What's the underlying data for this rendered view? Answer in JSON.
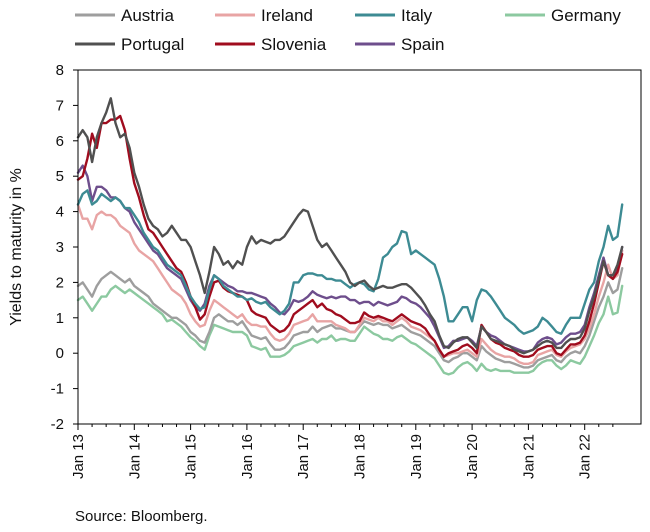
{
  "chart_data": {
    "type": "line",
    "title": "",
    "xlabel": "",
    "ylabel": "Yields to maturity in %",
    "ylim": [
      -2,
      8
    ],
    "yticks": [
      "-2",
      "-1",
      "0",
      "1",
      "2",
      "3",
      "4",
      "5",
      "6",
      "7",
      "8"
    ],
    "xticks": [
      "Jan 13",
      "Jan 14",
      "Jan 15",
      "Jan 16",
      "Jan 17",
      "Jan 18",
      "Jan 19",
      "Jan 20",
      "Jan 21",
      "Jan 22"
    ],
    "x": [
      "2013-01",
      "2013-02",
      "2013-03",
      "2013-04",
      "2013-05",
      "2013-06",
      "2013-07",
      "2013-08",
      "2013-09",
      "2013-10",
      "2013-11",
      "2013-12",
      "2014-01",
      "2014-02",
      "2014-03",
      "2014-04",
      "2014-05",
      "2014-06",
      "2014-07",
      "2014-08",
      "2014-09",
      "2014-10",
      "2014-11",
      "2014-12",
      "2015-01",
      "2015-02",
      "2015-03",
      "2015-04",
      "2015-05",
      "2015-06",
      "2015-07",
      "2015-08",
      "2015-09",
      "2015-10",
      "2015-11",
      "2015-12",
      "2016-01",
      "2016-02",
      "2016-03",
      "2016-04",
      "2016-05",
      "2016-06",
      "2016-07",
      "2016-08",
      "2016-09",
      "2016-10",
      "2016-11",
      "2016-12",
      "2017-01",
      "2017-02",
      "2017-03",
      "2017-04",
      "2017-05",
      "2017-06",
      "2017-07",
      "2017-08",
      "2017-09",
      "2017-10",
      "2017-11",
      "2017-12",
      "2018-01",
      "2018-02",
      "2018-03",
      "2018-04",
      "2018-05",
      "2018-06",
      "2018-07",
      "2018-08",
      "2018-09",
      "2018-10",
      "2018-11",
      "2018-12",
      "2019-01",
      "2019-02",
      "2019-03",
      "2019-04",
      "2019-05",
      "2019-06",
      "2019-07",
      "2019-08",
      "2019-09",
      "2019-10",
      "2019-11",
      "2019-12",
      "2020-01",
      "2020-02",
      "2020-03",
      "2020-04",
      "2020-05",
      "2020-06",
      "2020-07",
      "2020-08",
      "2020-09",
      "2020-10",
      "2020-11",
      "2020-12",
      "2021-01",
      "2021-02",
      "2021-03",
      "2021-04",
      "2021-05",
      "2021-06",
      "2021-07",
      "2021-08",
      "2021-09",
      "2021-10",
      "2021-11",
      "2021-12",
      "2022-01",
      "2022-02",
      "2022-03",
      "2022-04",
      "2022-05",
      "2022-06",
      "2022-07",
      "2022-08",
      "2022-09"
    ],
    "series": [
      {
        "name": "Austria",
        "color": "#9e9e9e",
        "values": [
          1.9,
          2.0,
          1.8,
          1.6,
          1.9,
          2.1,
          2.2,
          2.3,
          2.2,
          2.1,
          2.0,
          2.1,
          1.9,
          1.8,
          1.7,
          1.6,
          1.4,
          1.3,
          1.2,
          1.1,
          1.0,
          1.0,
          0.9,
          0.8,
          0.6,
          0.5,
          0.35,
          0.3,
          0.6,
          1.0,
          1.1,
          1.0,
          0.9,
          0.9,
          0.8,
          0.9,
          0.7,
          0.5,
          0.45,
          0.4,
          0.45,
          0.25,
          0.1,
          0.1,
          0.15,
          0.3,
          0.5,
          0.55,
          0.6,
          0.6,
          0.75,
          0.6,
          0.7,
          0.75,
          0.8,
          0.7,
          0.7,
          0.65,
          0.6,
          0.6,
          0.75,
          0.9,
          0.85,
          0.8,
          0.85,
          0.8,
          0.8,
          0.7,
          0.75,
          0.8,
          0.7,
          0.6,
          0.55,
          0.5,
          0.4,
          0.3,
          0.2,
          0.0,
          -0.2,
          -0.25,
          -0.15,
          -0.1,
          0.0,
          0.0,
          -0.1,
          -0.2,
          0.2,
          0.05,
          -0.05,
          -0.15,
          -0.2,
          -0.25,
          -0.25,
          -0.3,
          -0.35,
          -0.4,
          -0.4,
          -0.35,
          -0.2,
          -0.15,
          -0.1,
          -0.05,
          -0.2,
          -0.25,
          -0.1,
          0.0,
          0.05,
          0.0,
          0.2,
          0.5,
          0.9,
          1.3,
          1.6,
          2.0,
          1.7,
          1.8,
          2.4
        ]
      },
      {
        "name": "Ireland",
        "color": "#e8a4a4",
        "values": [
          4.2,
          3.8,
          3.8,
          3.5,
          3.9,
          4.0,
          3.9,
          3.9,
          3.8,
          3.6,
          3.5,
          3.4,
          3.1,
          2.9,
          2.8,
          2.7,
          2.6,
          2.4,
          2.2,
          2.0,
          1.8,
          1.7,
          1.6,
          1.4,
          1.1,
          0.9,
          0.75,
          0.8,
          1.2,
          1.5,
          1.4,
          1.3,
          1.2,
          1.1,
          1.0,
          1.1,
          0.9,
          0.8,
          0.8,
          0.75,
          0.75,
          0.55,
          0.4,
          0.35,
          0.4,
          0.55,
          0.8,
          0.85,
          0.9,
          0.95,
          1.1,
          0.9,
          0.9,
          0.9,
          0.9,
          0.8,
          0.75,
          0.7,
          0.6,
          0.6,
          0.8,
          1.0,
          0.95,
          0.9,
          1.0,
          0.9,
          0.9,
          0.8,
          0.9,
          1.0,
          0.9,
          0.75,
          0.7,
          0.65,
          0.55,
          0.45,
          0.35,
          0.1,
          -0.1,
          -0.05,
          0.0,
          0.0,
          0.05,
          0.1,
          0.0,
          -0.1,
          0.4,
          0.25,
          0.1,
          0.0,
          -0.05,
          -0.1,
          -0.1,
          -0.15,
          -0.25,
          -0.3,
          -0.3,
          -0.25,
          -0.05,
          0.0,
          0.05,
          0.1,
          -0.05,
          -0.1,
          0.05,
          0.15,
          0.2,
          0.25,
          0.4,
          0.7,
          1.1,
          1.6,
          2.0,
          2.5,
          2.1,
          2.2,
          2.9
        ]
      },
      {
        "name": "Italy",
        "color": "#3d8b93",
        "values": [
          4.2,
          4.5,
          4.6,
          4.2,
          4.3,
          4.5,
          4.4,
          4.3,
          4.4,
          4.3,
          4.1,
          4.1,
          3.9,
          3.7,
          3.4,
          3.2,
          3.0,
          2.9,
          2.7,
          2.5,
          2.4,
          2.3,
          2.2,
          1.9,
          1.6,
          1.4,
          1.25,
          1.3,
          1.8,
          2.2,
          2.1,
          1.9,
          1.8,
          1.7,
          1.6,
          1.6,
          1.5,
          1.55,
          1.45,
          1.4,
          1.45,
          1.3,
          1.2,
          1.1,
          1.2,
          1.4,
          2.0,
          2.0,
          2.2,
          2.25,
          2.25,
          2.2,
          2.2,
          2.1,
          2.1,
          2.05,
          2.05,
          1.95,
          1.85,
          1.95,
          2.0,
          1.95,
          1.8,
          1.75,
          2.1,
          2.7,
          2.8,
          3.0,
          3.1,
          3.45,
          3.4,
          2.8,
          2.9,
          2.8,
          2.7,
          2.6,
          2.5,
          2.1,
          1.6,
          0.9,
          0.9,
          1.1,
          1.3,
          1.3,
          0.9,
          1.5,
          1.8,
          1.75,
          1.6,
          1.4,
          1.2,
          1.0,
          0.9,
          0.8,
          0.65,
          0.55,
          0.6,
          0.65,
          0.75,
          1.0,
          0.9,
          0.75,
          0.6,
          0.55,
          0.8,
          1.0,
          1.0,
          1.0,
          1.4,
          1.8,
          2.0,
          2.6,
          3.0,
          3.6,
          3.2,
          3.3,
          4.2
        ]
      },
      {
        "name": "Germany",
        "color": "#8cc9a0",
        "values": [
          1.5,
          1.6,
          1.4,
          1.2,
          1.4,
          1.6,
          1.6,
          1.8,
          1.9,
          1.8,
          1.7,
          1.8,
          1.7,
          1.6,
          1.5,
          1.4,
          1.3,
          1.2,
          1.1,
          0.9,
          0.95,
          0.85,
          0.75,
          0.6,
          0.45,
          0.35,
          0.2,
          0.1,
          0.5,
          0.8,
          0.75,
          0.7,
          0.65,
          0.6,
          0.6,
          0.6,
          0.5,
          0.2,
          0.15,
          0.1,
          0.15,
          -0.1,
          -0.1,
          -0.1,
          -0.05,
          0.05,
          0.2,
          0.25,
          0.3,
          0.35,
          0.4,
          0.3,
          0.4,
          0.4,
          0.5,
          0.35,
          0.4,
          0.4,
          0.35,
          0.35,
          0.55,
          0.75,
          0.65,
          0.55,
          0.5,
          0.4,
          0.4,
          0.35,
          0.45,
          0.5,
          0.4,
          0.3,
          0.25,
          0.15,
          0.05,
          -0.05,
          -0.15,
          -0.35,
          -0.55,
          -0.6,
          -0.55,
          -0.4,
          -0.3,
          -0.25,
          -0.35,
          -0.5,
          -0.3,
          -0.45,
          -0.5,
          -0.45,
          -0.5,
          -0.5,
          -0.5,
          -0.55,
          -0.55,
          -0.55,
          -0.55,
          -0.5,
          -0.35,
          -0.25,
          -0.2,
          -0.2,
          -0.35,
          -0.45,
          -0.35,
          -0.2,
          -0.25,
          -0.3,
          -0.1,
          0.2,
          0.5,
          0.85,
          1.1,
          1.6,
          1.1,
          1.15,
          1.9
        ]
      },
      {
        "name": "Portugal",
        "color": "#505050",
        "values": [
          6.1,
          6.3,
          6.1,
          5.4,
          6.1,
          6.5,
          6.8,
          7.2,
          6.5,
          6.1,
          6.2,
          5.8,
          5.1,
          4.7,
          4.2,
          3.8,
          3.6,
          3.5,
          3.3,
          3.4,
          3.6,
          3.4,
          3.2,
          3.2,
          3.0,
          2.6,
          2.2,
          1.7,
          2.3,
          3.0,
          2.8,
          2.5,
          2.6,
          2.4,
          2.6,
          2.5,
          3.0,
          3.3,
          3.1,
          3.2,
          3.15,
          3.1,
          3.2,
          3.2,
          3.3,
          3.5,
          3.7,
          3.9,
          4.05,
          4.0,
          3.6,
          3.2,
          3.0,
          3.1,
          2.9,
          2.7,
          2.5,
          2.3,
          2.0,
          1.9,
          2.0,
          2.05,
          1.9,
          1.8,
          1.85,
          1.9,
          1.85,
          1.85,
          1.9,
          1.95,
          1.95,
          1.85,
          1.7,
          1.55,
          1.35,
          1.1,
          0.9,
          0.5,
          0.2,
          0.15,
          0.3,
          0.4,
          0.45,
          0.45,
          0.3,
          0.15,
          0.75,
          0.6,
          0.4,
          0.35,
          0.3,
          0.25,
          0.2,
          0.1,
          0.05,
          0.0,
          0.05,
          0.1,
          0.2,
          0.3,
          0.35,
          0.3,
          0.15,
          0.15,
          0.3,
          0.4,
          0.4,
          0.45,
          0.7,
          1.2,
          1.6,
          2.1,
          2.6,
          2.2,
          2.2,
          2.5,
          3.0
        ]
      },
      {
        "name": "Slovenia",
        "color": "#a00c1e",
        "values": [
          4.9,
          5.0,
          5.5,
          6.2,
          5.8,
          6.5,
          6.5,
          6.6,
          6.6,
          6.7,
          6.3,
          5.5,
          4.8,
          4.4,
          3.9,
          3.5,
          3.4,
          3.2,
          3.0,
          2.8,
          2.6,
          2.4,
          2.3,
          2.0,
          1.6,
          1.3,
          0.95,
          1.1,
          1.6,
          2.0,
          2.05,
          1.85,
          1.75,
          1.7,
          1.65,
          1.6,
          1.5,
          1.2,
          1.1,
          1.05,
          1.0,
          0.8,
          0.7,
          0.6,
          0.65,
          0.8,
          1.1,
          1.2,
          1.3,
          1.4,
          1.5,
          1.3,
          1.4,
          1.25,
          1.2,
          1.1,
          1.05,
          0.95,
          0.85,
          0.85,
          0.9,
          1.15,
          1.05,
          1.0,
          1.05,
          1.0,
          0.95,
          0.9,
          1.0,
          1.1,
          1.0,
          0.9,
          0.85,
          0.8,
          0.7,
          0.5,
          0.35,
          0.1,
          -0.1,
          0.0,
          0.05,
          0.1,
          0.2,
          0.25,
          0.15,
          0.0,
          0.8,
          0.6,
          0.4,
          0.3,
          0.25,
          0.15,
          0.1,
          0.05,
          -0.05,
          -0.1,
          -0.1,
          -0.05,
          0.1,
          0.15,
          0.2,
          0.2,
          0.0,
          -0.05,
          0.1,
          0.25,
          0.25,
          0.3,
          0.5,
          0.9,
          1.4,
          2.0,
          2.6,
          2.2,
          2.1,
          2.3,
          2.8
        ]
      },
      {
        "name": "Spain",
        "color": "#6e4e8c",
        "values": [
          5.1,
          5.3,
          5.0,
          4.3,
          4.7,
          4.7,
          4.6,
          4.4,
          4.4,
          4.3,
          4.1,
          4.0,
          3.7,
          3.5,
          3.3,
          3.1,
          2.9,
          2.8,
          2.6,
          2.4,
          2.3,
          2.2,
          2.1,
          1.8,
          1.5,
          1.3,
          1.2,
          1.4,
          1.9,
          2.2,
          2.1,
          2.0,
          1.9,
          1.85,
          1.75,
          1.75,
          1.7,
          1.7,
          1.65,
          1.6,
          1.55,
          1.4,
          1.3,
          1.15,
          1.1,
          1.25,
          1.5,
          1.45,
          1.5,
          1.6,
          1.75,
          1.65,
          1.6,
          1.55,
          1.6,
          1.55,
          1.6,
          1.6,
          1.5,
          1.5,
          1.4,
          1.45,
          1.45,
          1.35,
          1.45,
          1.4,
          1.35,
          1.4,
          1.45,
          1.6,
          1.55,
          1.45,
          1.4,
          1.3,
          1.15,
          1.0,
          0.75,
          0.45,
          0.15,
          0.2,
          0.35,
          0.35,
          0.4,
          0.45,
          0.35,
          0.2,
          0.75,
          0.6,
          0.5,
          0.45,
          0.35,
          0.25,
          0.2,
          0.15,
          0.1,
          0.05,
          0.05,
          0.1,
          0.3,
          0.4,
          0.45,
          0.4,
          0.25,
          0.3,
          0.45,
          0.55,
          0.55,
          0.6,
          0.8,
          1.3,
          1.7,
          2.2,
          2.7,
          2.2,
          2.2,
          2.4,
          3.0
        ]
      }
    ]
  },
  "footer": {
    "source": "Source: Bloomberg."
  }
}
